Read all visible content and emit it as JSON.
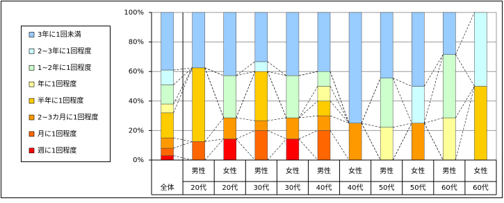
{
  "chart_data": {
    "type": "bar",
    "stacked": true,
    "categories": [
      [
        "全体"
      ],
      [
        "男性",
        "20代"
      ],
      [
        "女性",
        "20代"
      ],
      [
        "男性",
        "30代"
      ],
      [
        "女性",
        "30代"
      ],
      [
        "男性",
        "40代"
      ],
      [
        "女性",
        "40代"
      ],
      [
        "男性",
        "50代"
      ],
      [
        "女性",
        "50代"
      ],
      [
        "男性",
        "60代"
      ],
      [
        "女性",
        "60代"
      ]
    ],
    "series": [
      {
        "name": "週に1回程度",
        "color": "#ff0000",
        "values": [
          3,
          0,
          14.3,
          0,
          14.3,
          0,
          0,
          0,
          0,
          0,
          0
        ]
      },
      {
        "name": "月に1回程度",
        "color": "#ff6600",
        "values": [
          5,
          12.5,
          0,
          20,
          0,
          20,
          0,
          0,
          0,
          0,
          0
        ]
      },
      {
        "name": "2~3カ月に1回程度",
        "color": "#ff9900",
        "values": [
          7,
          0,
          14.3,
          6.7,
          14.3,
          10,
          25,
          0,
          25,
          0,
          0
        ]
      },
      {
        "name": "半年に1回程度",
        "color": "#ffcc00",
        "values": [
          17,
          50,
          0,
          33.3,
          0,
          10,
          0,
          0,
          0,
          0,
          50
        ]
      },
      {
        "name": "年に1回程度",
        "color": "#ffff99",
        "values": [
          6,
          0,
          0,
          0,
          0,
          10,
          0,
          22.2,
          0,
          28.6,
          0
        ]
      },
      {
        "name": "1~2年に1回程度",
        "color": "#ccffcc",
        "values": [
          13,
          0,
          28.6,
          0,
          28.6,
          10,
          0,
          33.3,
          0,
          42.9,
          0
        ]
      },
      {
        "name": "2~3年に1回程度",
        "color": "#ccffff",
        "values": [
          10,
          0,
          0,
          6.7,
          0,
          0,
          0,
          0,
          25,
          0,
          50
        ]
      },
      {
        "name": "3年に1回未満",
        "color": "#99ccff",
        "values": [
          39,
          37.5,
          42.8,
          33.3,
          42.8,
          40,
          75,
          44.5,
          50,
          28.5,
          0
        ]
      }
    ],
    "ylim": [
      0,
      100
    ],
    "yticks": [
      {
        "value": 0,
        "label": "0%"
      },
      {
        "value": 20,
        "label": "20%"
      },
      {
        "value": 40,
        "label": "40%"
      },
      {
        "value": 60,
        "label": "60%"
      },
      {
        "value": 80,
        "label": "80%"
      },
      {
        "value": 100,
        "label": "100%"
      }
    ],
    "grid": true,
    "series_lines": true,
    "legend": "left"
  }
}
